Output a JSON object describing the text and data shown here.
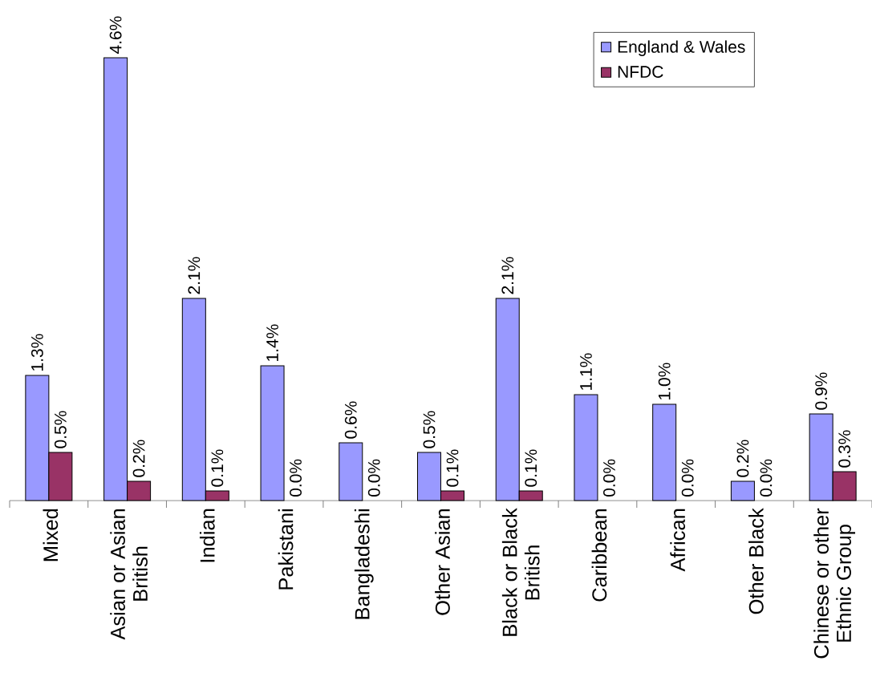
{
  "chart_data": {
    "type": "bar",
    "categories": [
      "Mixed",
      "Asian or Asian British",
      "Indian",
      "Pakistani",
      "Bangladeshi",
      "Other Asian",
      "Black or Black British",
      "Caribbean",
      "African",
      "Other Black",
      "Chinese or other Ethnic Group"
    ],
    "series": [
      {
        "name": "England & Wales",
        "color": "#9999ff",
        "values": [
          1.3,
          4.6,
          2.1,
          1.4,
          0.6,
          0.5,
          2.1,
          1.1,
          1.0,
          0.2,
          0.9
        ],
        "value_labels": [
          "1.3%",
          "4.6%",
          "2.1%",
          "1.4%",
          "0.6%",
          "0.5%",
          "2.1%",
          "1.1%",
          "1.0%",
          "0.2%",
          "0.9%"
        ]
      },
      {
        "name": "NFDC",
        "color": "#993366",
        "values": [
          0.5,
          0.2,
          0.1,
          0.0,
          0.0,
          0.1,
          0.1,
          0.0,
          0.0,
          0.0,
          0.3
        ],
        "value_labels": [
          "0.5%",
          "0.2%",
          "0.1%",
          "0.0%",
          "0.0%",
          "0.1%",
          "0.1%",
          "0.0%",
          "0.0%",
          "0.0%",
          "0.3%"
        ]
      }
    ],
    "legend": "top right",
    "tick_labels": "x"
  }
}
